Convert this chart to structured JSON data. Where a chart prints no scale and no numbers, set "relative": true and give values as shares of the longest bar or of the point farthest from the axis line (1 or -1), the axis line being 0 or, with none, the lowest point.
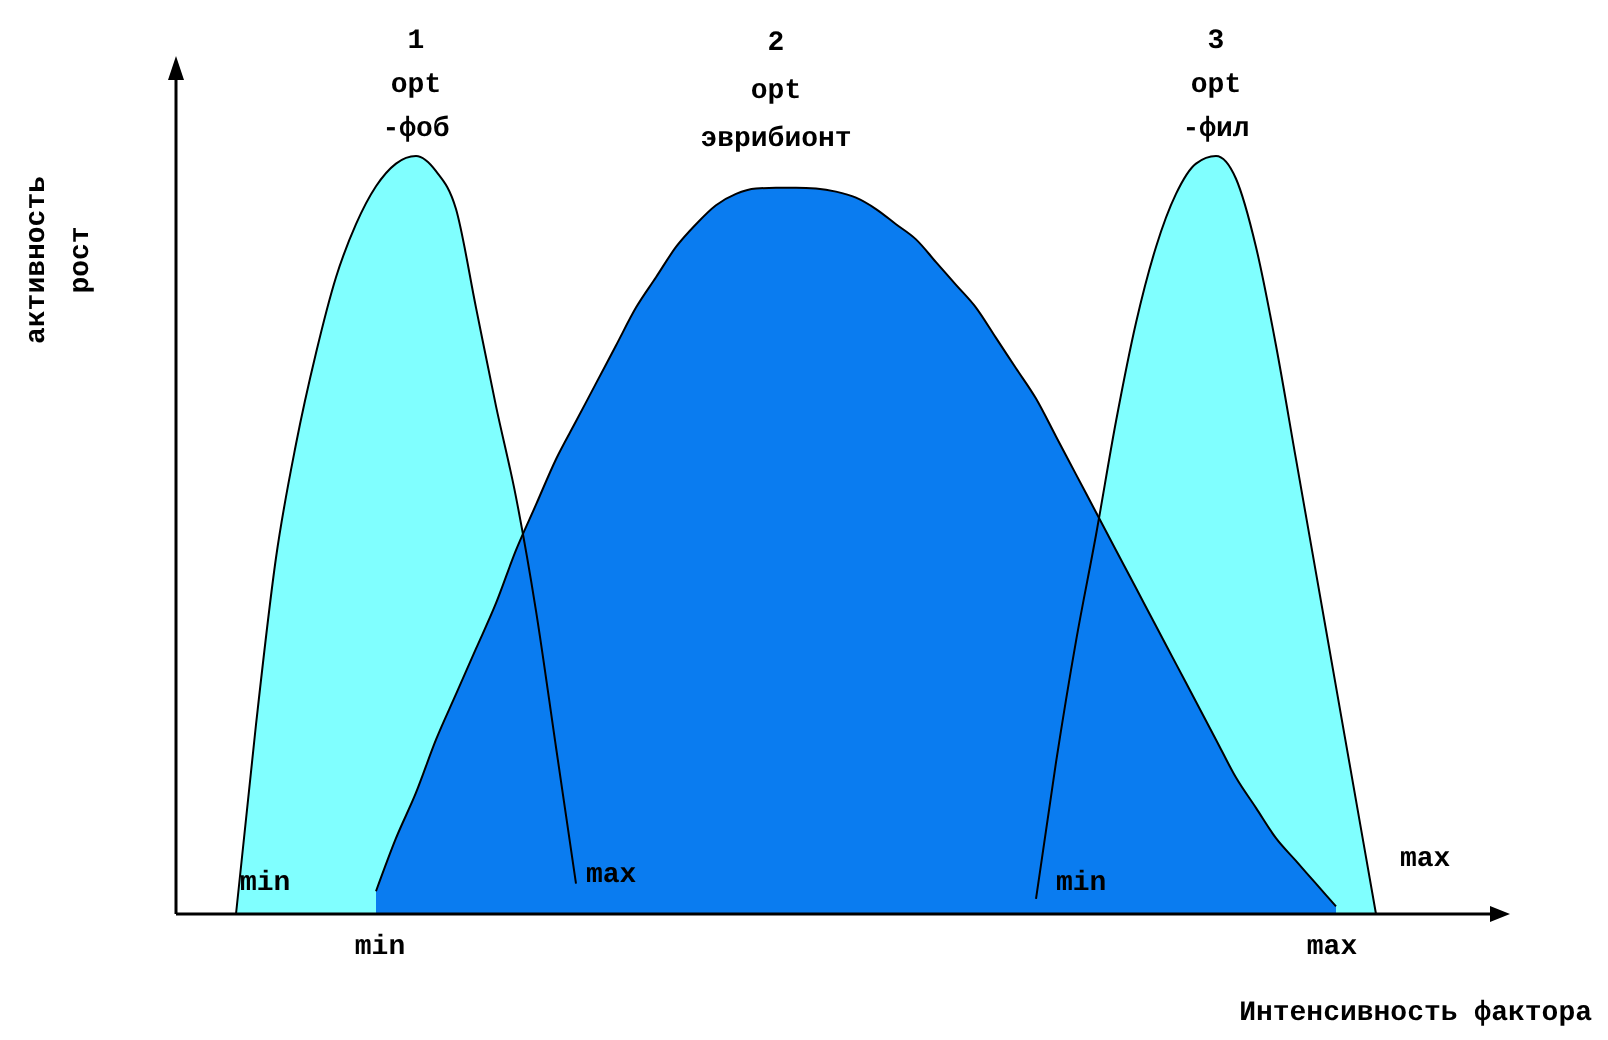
{
  "chart_data": {
    "type": "area",
    "relative": true,
    "xlabel": "Интенсивность фактора",
    "ylabel": "активность\nрост",
    "categories": [
      null,
      null,
      null,
      null,
      null,
      null,
      null,
      null,
      null,
      null,
      null,
      null,
      null,
      null,
      null,
      null,
      null,
      null,
      null,
      null,
      null,
      null,
      null,
      null,
      null,
      null,
      null,
      null,
      null,
      null,
      null,
      null,
      null,
      null,
      null,
      null,
      null,
      null,
      null,
      null,
      null,
      null,
      null,
      null,
      null,
      null,
      null,
      null,
      null,
      null,
      null,
      null,
      null,
      null,
      null,
      null,
      null,
      null,
      null,
      null,
      null,
      null,
      null,
      null,
      null,
      null
    ],
    "series": [
      {
        "color": "#80ffff",
        "values": [
          null,
          null,
          null,
          0,
          0.25,
          0.47,
          0.62,
          0.74,
          0.84,
          0.91,
          0.96,
          0.99,
          1.0,
          0.98,
          0.93,
          0.8,
          0.67,
          0.55,
          0.4,
          0.22,
          0.04,
          null,
          null,
          null,
          null,
          null,
          null,
          null,
          null,
          null,
          null,
          null,
          null,
          null,
          null,
          null,
          null,
          null,
          null,
          null,
          null,
          null,
          null,
          null,
          null,
          null,
          null,
          null,
          null,
          null,
          null,
          null,
          null,
          null,
          null,
          null,
          null,
          null,
          null,
          null,
          null,
          null,
          null,
          null,
          null,
          null
        ]
      },
      {
        "color": "#80ffff",
        "values": [
          null,
          null,
          null,
          null,
          null,
          null,
          null,
          null,
          null,
          null,
          null,
          null,
          null,
          null,
          null,
          null,
          null,
          null,
          null,
          null,
          null,
          null,
          null,
          null,
          null,
          null,
          null,
          null,
          null,
          null,
          null,
          null,
          null,
          null,
          null,
          null,
          null,
          null,
          null,
          null,
          null,
          null,
          null,
          0.02,
          0.2,
          0.36,
          0.5,
          0.65,
          0.78,
          0.88,
          0.95,
          0.99,
          1.0,
          0.97,
          0.88,
          0.75,
          0.6,
          0.45,
          0.3,
          0.15,
          0,
          null,
          null,
          null,
          null,
          null
        ]
      },
      {
        "color": "#0a7cf0",
        "values": [
          null,
          null,
          null,
          null,
          null,
          null,
          null,
          null,
          null,
          null,
          0.03,
          0.1,
          0.16,
          0.23,
          0.29,
          0.35,
          0.41,
          0.48,
          0.54,
          0.6,
          0.65,
          0.7,
          0.75,
          0.8,
          0.84,
          0.88,
          0.91,
          0.935,
          0.95,
          0.957,
          0.958,
          0.958,
          0.957,
          0.953,
          0.945,
          0.93,
          0.91,
          0.89,
          0.86,
          0.83,
          0.8,
          0.76,
          0.72,
          0.68,
          0.63,
          0.58,
          0.53,
          0.48,
          0.43,
          0.38,
          0.33,
          0.28,
          0.23,
          0.18,
          0.14,
          0.1,
          0.07,
          0.04,
          0.01,
          null,
          null,
          null,
          null,
          null,
          null,
          null
        ]
      }
    ],
    "annotations": [
      "1\nopt\n-фоб",
      "2\nopt\nэврибионт",
      "3\nopt\n-фил",
      "min",
      "max",
      "min",
      "max",
      "min",
      "max"
    ]
  }
}
